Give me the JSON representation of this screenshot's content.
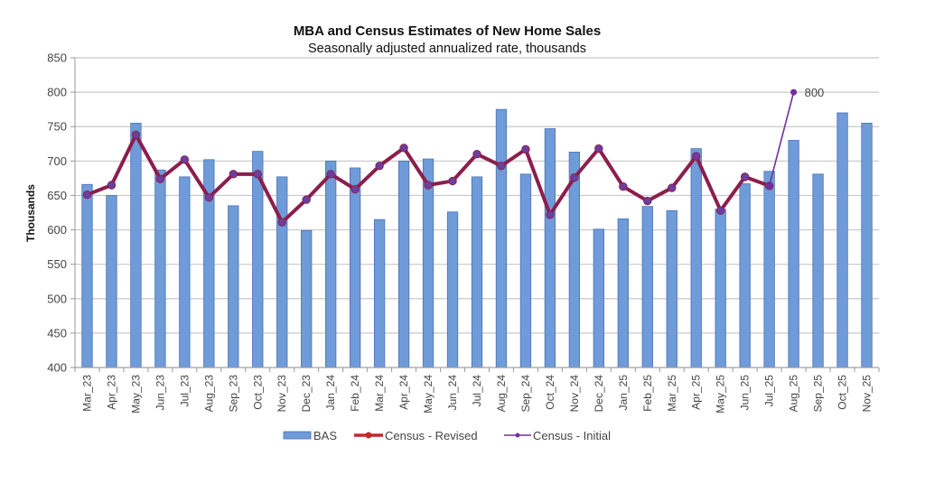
{
  "chart_data": {
    "type": "bar",
    "title": "MBA and Census Estimates of New Home Sales",
    "subtitle": "Seasonally adjusted annualized rate, thousands",
    "xlabel": "",
    "ylabel": "Thousands",
    "ylim": [
      400,
      850
    ],
    "yticks": [
      400,
      450,
      500,
      550,
      600,
      650,
      700,
      750,
      800,
      850
    ],
    "grid": true,
    "legend_position": "bottom",
    "categories": [
      "Mar_23",
      "Apr_23",
      "May_23",
      "Jun_23",
      "Jul_23",
      "Aug_23",
      "Sep_23",
      "Oct_23",
      "Nov_23",
      "Dec_23",
      "Jan_24",
      "Feb_24",
      "Mar_24",
      "Apr_24",
      "May_24",
      "Jun_24",
      "Jul_24",
      "Aug_24",
      "Sep_24",
      "Oct_24",
      "Nov_24",
      "Dec_24",
      "Jan_25",
      "Feb_25",
      "Mar_25",
      "Apr_25",
      "May_25",
      "Jun_25",
      "Jul_25",
      "Aug_25",
      "Sep_25",
      "Oct_25",
      "Nov_25"
    ],
    "series": [
      {
        "name": "BAS",
        "type": "bar",
        "color": "#6f9bd8",
        "values": [
          666,
          650,
          755,
          687,
          677,
          702,
          635,
          714,
          677,
          599,
          700,
          690,
          615,
          700,
          703,
          626,
          677,
          775,
          681,
          747,
          713,
          601,
          616,
          634,
          628,
          718,
          630,
          667,
          685,
          730,
          681,
          770,
          755
        ]
      },
      {
        "name": "Census - Revised",
        "type": "line",
        "color": "#8b1e4c",
        "values": [
          651,
          665,
          738,
          674,
          702,
          647,
          681,
          681,
          611,
          644,
          681,
          659,
          693,
          719,
          665,
          671,
          710,
          693,
          717,
          622,
          676,
          718,
          663,
          642,
          661,
          707,
          628,
          677,
          664,
          null,
          null,
          null,
          null
        ]
      },
      {
        "name": "Census - Initial",
        "type": "line",
        "color": "#7030a0",
        "values": [
          null,
          null,
          null,
          null,
          null,
          null,
          null,
          null,
          null,
          null,
          null,
          null,
          null,
          null,
          null,
          null,
          null,
          null,
          null,
          null,
          null,
          null,
          null,
          null,
          null,
          null,
          null,
          null,
          664,
          800,
          null,
          null,
          null
        ]
      }
    ],
    "annotations": [
      {
        "category": "Aug_25",
        "series": "Census - Initial",
        "text": "800"
      }
    ]
  }
}
